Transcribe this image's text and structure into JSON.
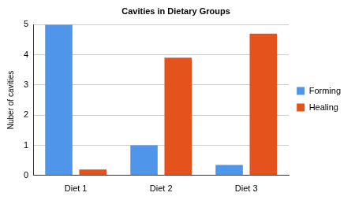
{
  "chart_data": {
    "type": "bar",
    "title": "Cavities in Dietary Groups",
    "y_label": "Nuber of cavities",
    "categories": [
      "Diet 1",
      "Diet 2",
      "Diet 3"
    ],
    "series": [
      {
        "name": "Forming",
        "color": "#4f95ea",
        "values": [
          5,
          1,
          0.35
        ]
      },
      {
        "name": "Healing",
        "color": "#e3531b",
        "values": [
          0.2,
          3.9,
          4.7
        ]
      }
    ],
    "ylim": [
      0,
      5
    ],
    "yticks": [
      0,
      1,
      2,
      3,
      4,
      5
    ],
    "grid": true,
    "legend": "right"
  }
}
